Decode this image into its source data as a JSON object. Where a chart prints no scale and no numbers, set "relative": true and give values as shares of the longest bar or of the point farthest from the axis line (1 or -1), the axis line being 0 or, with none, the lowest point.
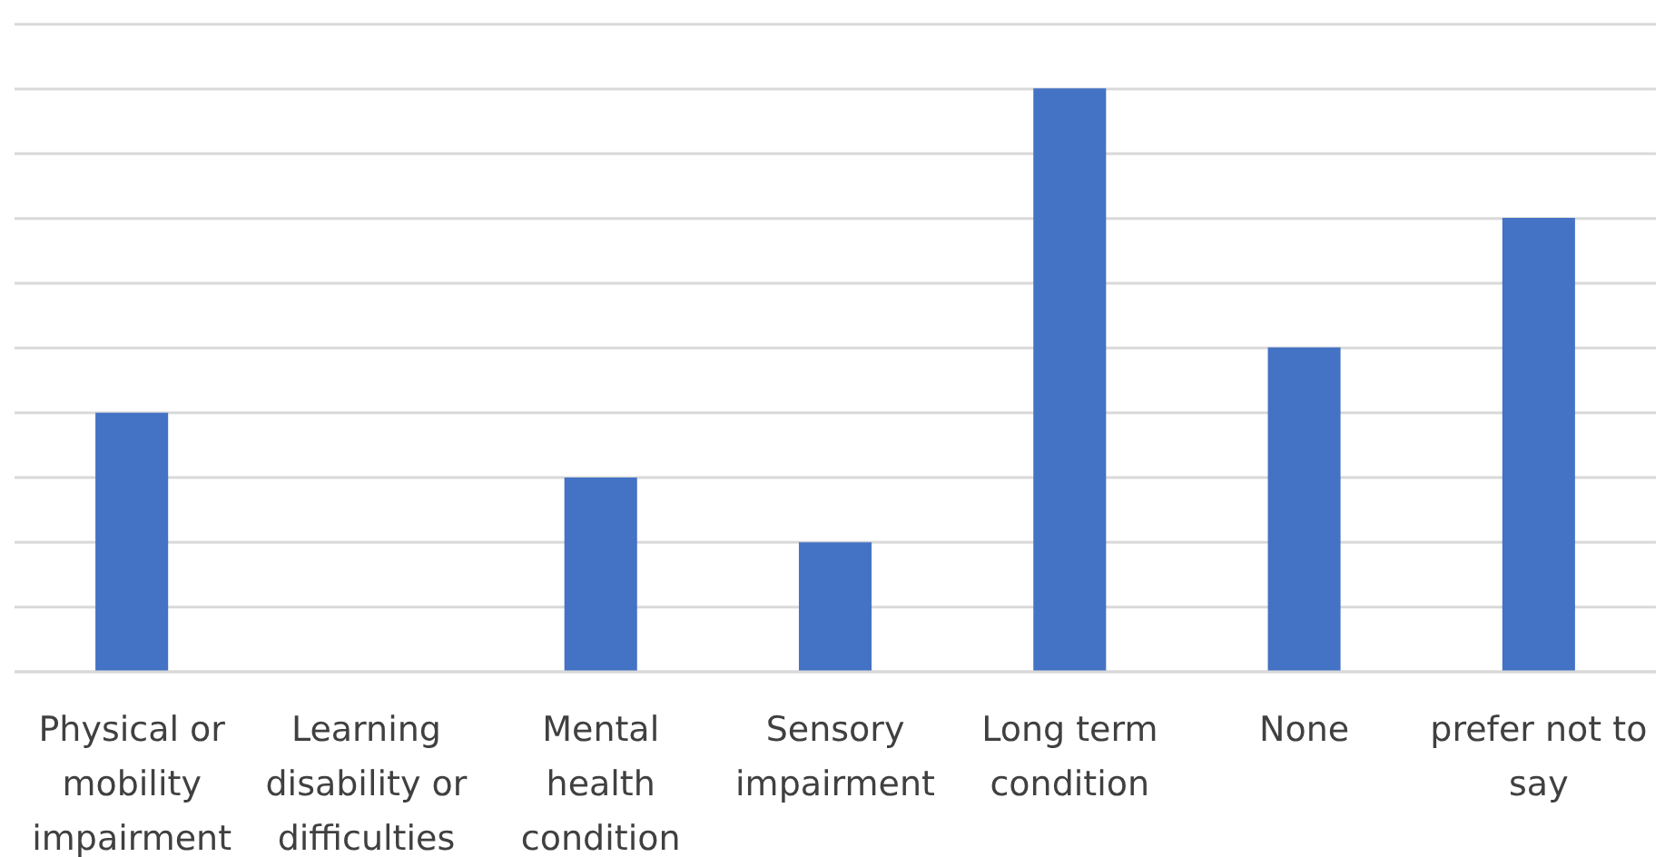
{
  "chart_data": {
    "type": "bar",
    "relative": true,
    "categories": [
      "Physical or mobility impairment",
      "Learning disability or difficulties",
      "Mental health condition",
      "Sensory impairment",
      "Long term condition",
      "None",
      "prefer not to say"
    ],
    "values": [
      0.444,
      0,
      0.333,
      0.222,
      1,
      0.556,
      0.778
    ],
    "color": "#4472c4",
    "grid": "y"
  }
}
